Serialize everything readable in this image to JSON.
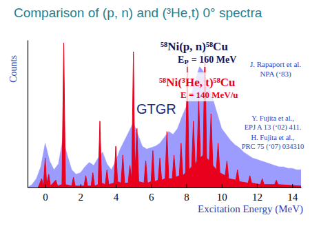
{
  "chart_data": {
    "type": "area",
    "title": "Comparison of (p, n) and (³He,t)  0° spectra",
    "x_label": "Excitation Energy (MeV)",
    "y_label": "Counts",
    "xlim": [
      -1,
      14.5
    ],
    "xticks": [
      0,
      2,
      4,
      6,
      8,
      10,
      12,
      14
    ],
    "ylim": [
      0,
      100
    ],
    "tick_labels": "x",
    "series": [
      {
        "name": "⁵⁸Ni(p, n)⁵⁸Cu",
        "color": "#9c9cff",
        "x": [
          -1,
          -0.75,
          -0.5,
          -0.25,
          0,
          0.25,
          0.5,
          0.75,
          1,
          1.25,
          1.5,
          1.75,
          2,
          2.25,
          2.5,
          2.75,
          3,
          3.25,
          3.5,
          3.75,
          4,
          4.25,
          4.5,
          4.75,
          5,
          5.25,
          5.5,
          5.75,
          6,
          6.25,
          6.5,
          6.75,
          7,
          7.25,
          7.5,
          7.75,
          8,
          8.25,
          8.5,
          8.75,
          9,
          9.25,
          9.5,
          9.75,
          10,
          10.25,
          10.5,
          10.75,
          11,
          11.25,
          11.5,
          11.75,
          12,
          12.25,
          12.5,
          12.75,
          13,
          13.25,
          13.5,
          13.75,
          14,
          14.25,
          14.5
        ],
        "values": [
          0,
          2,
          6,
          14,
          30,
          18,
          12,
          16,
          33,
          22,
          12,
          9,
          10,
          14,
          17,
          15,
          20,
          24,
          16,
          12,
          18,
          26,
          32,
          38,
          44,
          36,
          28,
          26,
          27,
          28,
          30,
          34,
          38,
          36,
          40,
          48,
          55,
          62,
          72,
          82,
          78,
          70,
          60,
          50,
          40,
          36,
          32,
          29,
          27,
          24,
          22,
          20,
          19,
          18,
          17,
          16,
          15,
          14,
          14,
          13,
          13,
          12,
          12
        ]
      },
      {
        "name": "⁵⁸Ni(³He, t)⁵⁸Cu",
        "color": "#e8001c",
        "x": [
          -0.4,
          -0.2,
          -0.1,
          0,
          0.08,
          0.2,
          0.3,
          0.6,
          0.7,
          0.95,
          1.05,
          1.15,
          1.5,
          1.6,
          1.7,
          2.2,
          2.3,
          2.4,
          2.6,
          2.7,
          2.8,
          3,
          3.1,
          3.2,
          3.4,
          3.5,
          3.6,
          3.9,
          4,
          4.1,
          4.3,
          4.4,
          4.5,
          4.7,
          4.8,
          4.9,
          5,
          5.08,
          5.2,
          5.3,
          5.6,
          5.7,
          5.8,
          6,
          6.1,
          6.2,
          6.4,
          6.5,
          6.6,
          6.8,
          6.9,
          7,
          7.2,
          7.3,
          7.4,
          7.6,
          7.7,
          7.8,
          7.95,
          8.05,
          8.15,
          8.3,
          8.4,
          8.5,
          8.6,
          8.7,
          8.8,
          8.95,
          9.05,
          9.15,
          9.3,
          9.4,
          9.5,
          9.7,
          9.8,
          9.9,
          10.2,
          10.3,
          10.4,
          10.8,
          10.9,
          11,
          11.5,
          11.6,
          11.7,
          12.2,
          12.3,
          12.4,
          13,
          13.1,
          13.2,
          14.5
        ],
        "values": [
          0,
          6,
          1,
          20,
          2,
          9,
          1,
          5,
          1,
          2,
          98,
          2,
          1,
          7,
          1,
          1,
          8,
          1,
          1,
          10,
          1,
          2,
          45,
          3,
          2,
          12,
          2,
          3,
          28,
          4,
          3,
          22,
          3,
          3,
          15,
          5,
          92,
          8,
          40,
          4,
          3,
          18,
          3,
          4,
          25,
          4,
          5,
          20,
          5,
          6,
          38,
          6,
          6,
          22,
          7,
          8,
          30,
          8,
          10,
          85,
          12,
          14,
          45,
          15,
          18,
          60,
          20,
          22,
          95,
          20,
          18,
          50,
          15,
          12,
          30,
          10,
          8,
          18,
          6,
          5,
          12,
          4,
          3,
          8,
          3,
          2,
          6,
          2,
          2,
          5,
          2,
          1
        ]
      }
    ],
    "annotations": [
      "Eₚ = 160 MeV",
      "J. Rapaport et al.",
      "NPA (‘83)",
      "E = 140 MeV/u",
      "GTGR",
      "Y. Fujita et al.,",
      "EPJ A 13 (‘02) 411.",
      "H. Fujita et al.,",
      "PRC 75 (‘07) 034310"
    ]
  }
}
